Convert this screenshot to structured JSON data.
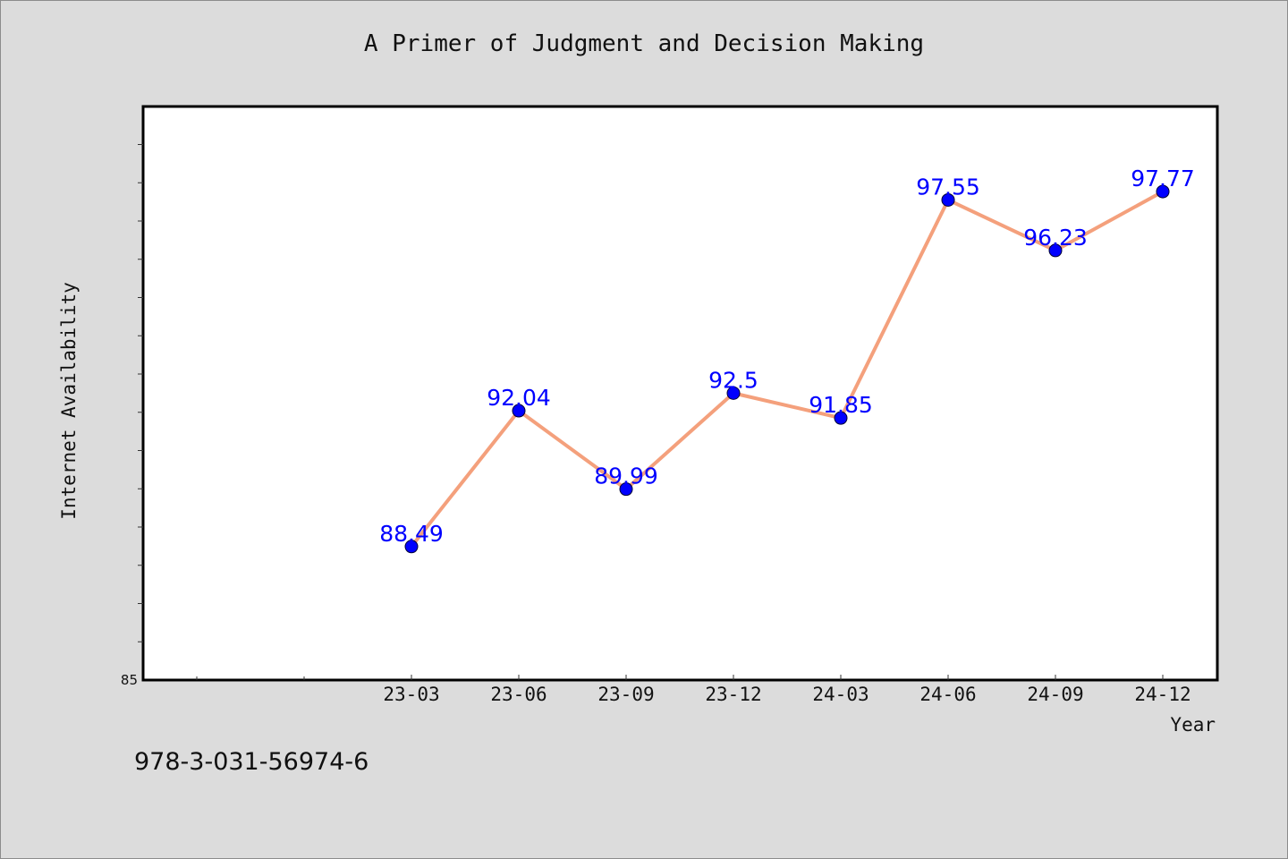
{
  "page": {
    "footer_text": "978-3-031-56974-6"
  },
  "chart_data": {
    "type": "line",
    "title": "A Primer of Judgment and Decision Making",
    "xlabel": "Year",
    "ylabel": "Internet Availability",
    "x": [
      "23-03",
      "23-06",
      "23-09",
      "23-12",
      "24-03",
      "24-06",
      "24-09",
      "24-12"
    ],
    "series": [
      {
        "values": [
          88.49,
          92.04,
          89.99,
          92.5,
          91.85,
          97.55,
          96.23,
          97.77
        ],
        "labels": [
          "88.49",
          "92.04",
          "89.99",
          "92.5",
          "91.85",
          "97.55",
          "96.23",
          "97.77"
        ]
      }
    ],
    "ylim": [
      85,
      100
    ],
    "y_tick_labels": [
      "85"
    ],
    "grid": false,
    "legend": "none",
    "colors": {
      "line": "#f4a07c",
      "marker": "#0000ff",
      "data_label": "#0000ff",
      "plot_background": "#ffffff",
      "page_background": "#dcdcdc"
    }
  }
}
